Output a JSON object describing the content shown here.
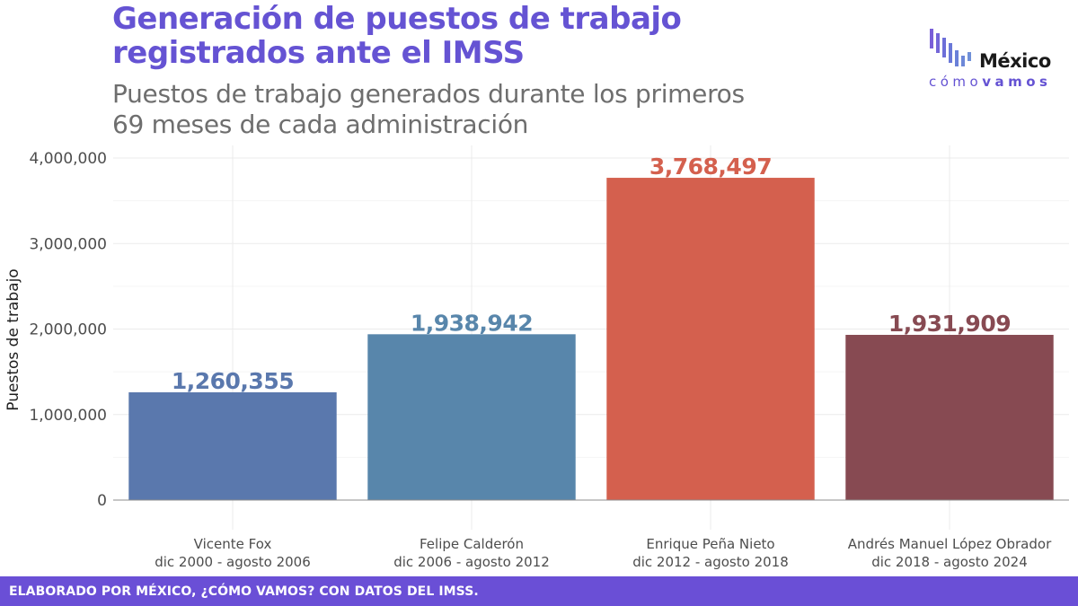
{
  "header": {
    "title_line1": "Generación de puestos de trabajo",
    "title_line2": "registrados ante el IMSS",
    "subtitle_line1": "Puestos de trabajo generados durante los primeros",
    "subtitle_line2": "69 meses de cada administración"
  },
  "logo": {
    "word": "México",
    "sub_light": "cómo",
    "sub_bold": "vamos"
  },
  "footer": {
    "text": "ELABORADO POR MÉXICO, ¿CÓMO VAMOS? CON DATOS DEL IMSS."
  },
  "chart_data": {
    "type": "bar",
    "title": "Generación de puestos de trabajo registrados ante el IMSS",
    "subtitle": "Puestos de trabajo generados durante los primeros 69 meses de cada administración",
    "xlabel": "",
    "ylabel": "Puestos de trabajo",
    "ylim": [
      0,
      4000000
    ],
    "yticks": [
      0,
      1000000,
      2000000,
      3000000,
      4000000
    ],
    "ytick_labels": [
      "0",
      "1,000,000",
      "2,000,000",
      "3,000,000",
      "4,000,000"
    ],
    "grid": true,
    "legend": "none",
    "categories": [
      {
        "name": "Vicente Fox",
        "period": "dic 2000 - agosto 2006"
      },
      {
        "name": "Felipe Calderón",
        "period": "dic 2006 - agosto 2012"
      },
      {
        "name": "Enrique Peña Nieto",
        "period": "dic 2012 - agosto 2018"
      },
      {
        "name": "Andrés Manuel López Obrador",
        "period": "dic 2018 - agosto 2024"
      }
    ],
    "values": [
      1260355,
      1938942,
      3768497,
      1931909
    ],
    "value_labels": [
      "1,260,355",
      "1,938,942",
      "3,768,497",
      "1,931,909"
    ],
    "colors": [
      "#5a78ad",
      "#5886ab",
      "#d4604e",
      "#874a52"
    ]
  }
}
